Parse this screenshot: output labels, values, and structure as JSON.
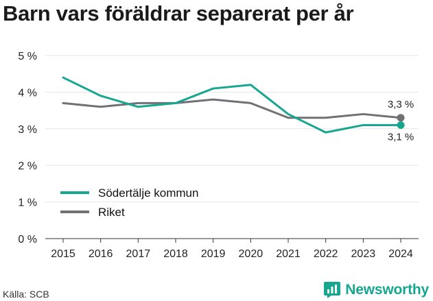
{
  "title": "Barn vars föräldrar separerat per år",
  "source": "Källa: SCB",
  "brand": {
    "name": "Newsworthy",
    "color": "#17a690",
    "icon": "newsworthy-logo-icon"
  },
  "chart_data": {
    "type": "line",
    "title": "Barn vars föräldrar separerat per år",
    "xlabel": "",
    "ylabel": "",
    "categories": [
      "2015",
      "2016",
      "2017",
      "2018",
      "2019",
      "2020",
      "2021",
      "2022",
      "2023",
      "2024"
    ],
    "ylim": [
      0,
      5
    ],
    "yticks": [
      0,
      1,
      2,
      3,
      4,
      5
    ],
    "ytick_labels": [
      "0 %",
      "1 %",
      "2 %",
      "3 %",
      "4 %",
      "5 %"
    ],
    "grid": true,
    "legend_position": "bottom-left",
    "series": [
      {
        "name": "Södertälje kommun",
        "color": "#17a690",
        "values": [
          4.4,
          3.9,
          3.6,
          3.7,
          4.1,
          4.2,
          3.4,
          2.9,
          3.1,
          3.1
        ],
        "end_label": "3,1 %"
      },
      {
        "name": "Riket",
        "color": "#707075",
        "values": [
          3.7,
          3.6,
          3.7,
          3.7,
          3.8,
          3.7,
          3.3,
          3.3,
          3.4,
          3.3
        ],
        "end_label": "3,3 %"
      }
    ]
  }
}
